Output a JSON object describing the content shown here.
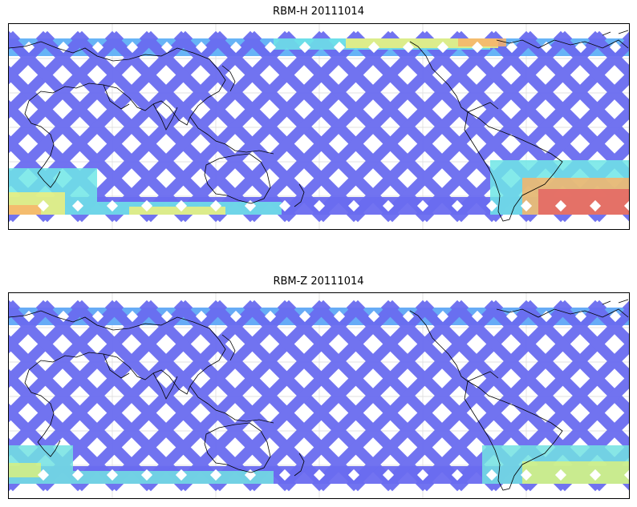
{
  "panels": [
    {
      "title": "RBM-H 20111014",
      "colors": {
        "base": "#6a6cf0",
        "mid": "#5fb0f5",
        "cyan": "#6fe6e6",
        "yellow": "#f0f07a",
        "orange": "#f8b468",
        "red": "#e46464"
      }
    },
    {
      "title": "RBM-Z 20111014",
      "colors": {
        "base": "#6a6cf0",
        "mid": "#5fa8f5",
        "cyan": "#72e2e2",
        "yellow": "#d8f080",
        "orange": "#f0e070",
        "red": "#f0d060"
      }
    }
  ]
}
